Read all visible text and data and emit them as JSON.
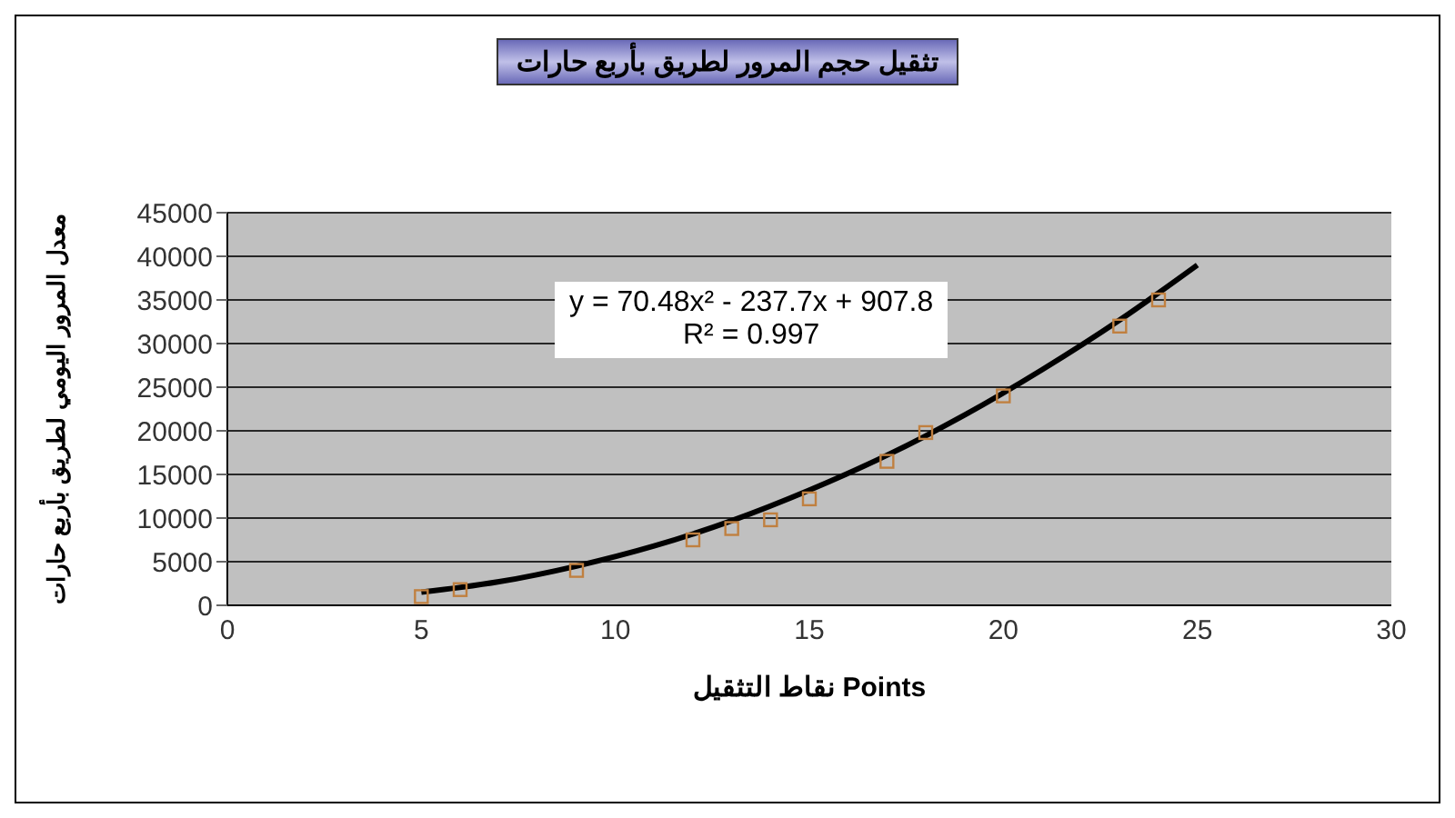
{
  "chart_data": {
    "type": "scatter",
    "title": "تثقيل حجم المرور لطريق بأربع حارات",
    "xlabel": "نقاط التثقيل Points",
    "ylabel": "معدل المرور اليومي لطريق بأربع حارات",
    "annotations": [
      "y = 70.48x² - 237.7x + 907.8",
      "R² = 0.997"
    ],
    "xlim": [
      0,
      30
    ],
    "xticks": [
      0,
      5,
      10,
      15,
      20,
      25,
      30
    ],
    "ylim": [
      0,
      45000
    ],
    "yticks": [
      0,
      5000,
      10000,
      15000,
      20000,
      25000,
      30000,
      35000,
      40000,
      45000
    ],
    "grid": "y",
    "marker": "square",
    "series": [
      {
        "color": "#c08040",
        "x": [
          5,
          6,
          9,
          12,
          13,
          14,
          15,
          17,
          18,
          20,
          23,
          24
        ],
        "values": [
          1000,
          1800,
          4000,
          7500,
          8800,
          9800,
          12200,
          16500,
          19800,
          24000,
          32000,
          35000
        ]
      },
      {
        "type": "line",
        "color": "#000000",
        "marker": "none",
        "x": [
          5,
          7,
          9,
          11,
          13,
          15,
          17,
          19,
          21,
          23,
          25
        ],
        "values": [
          1500,
          2700,
          4500,
          6800,
          9700,
          13200,
          17200,
          21800,
          27000,
          32700,
          39000
        ]
      }
    ]
  }
}
